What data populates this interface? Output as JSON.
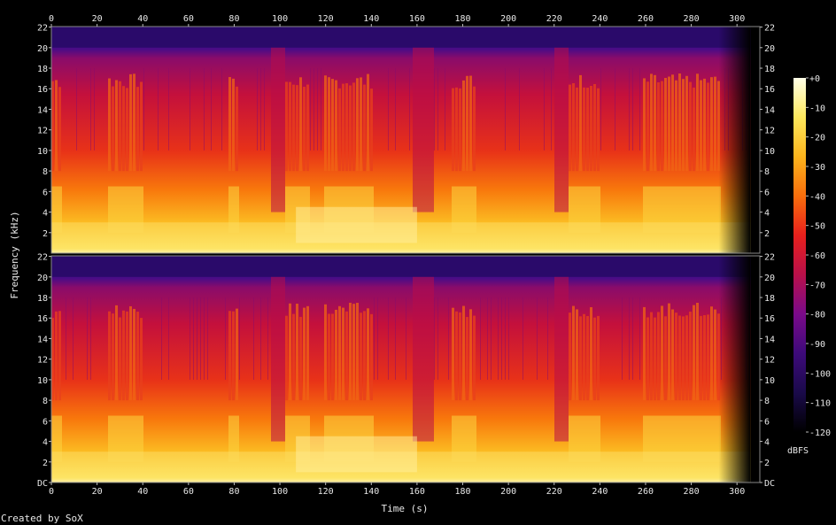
{
  "chart_data": {
    "type": "heatmap",
    "title": "",
    "xlabel": "Time (s)",
    "ylabel": "Frequency (kHz)",
    "x_ticks": [
      "0",
      "20",
      "40",
      "60",
      "80",
      "100",
      "120",
      "140",
      "160",
      "180",
      "200",
      "220",
      "240",
      "260",
      "280",
      "300"
    ],
    "xlim": [
      0,
      310
    ],
    "channels": [
      {
        "name": "",
        "y_ticks": [
          "2",
          "4",
          "6",
          "8",
          "10",
          "12",
          "14",
          "16",
          "18",
          "20",
          "22"
        ],
        "ylim": [
          0,
          22.05
        ]
      },
      {
        "name": "",
        "y_ticks": [
          "DC",
          "2",
          "4",
          "6",
          "8",
          "10",
          "12",
          "14",
          "16",
          "18",
          "20",
          "22"
        ],
        "ylim": [
          0,
          22.05
        ]
      }
    ],
    "colorbar": {
      "label": "dBFS",
      "ticks": [
        "+0",
        "-10",
        "-20",
        "-30",
        "-40",
        "-50",
        "-60",
        "-70",
        "-80",
        "-90",
        "-100",
        "-110",
        "-120"
      ],
      "range": [
        -120,
        0
      ],
      "colors": [
        "#000000",
        "#1a0a4a",
        "#3d0a7a",
        "#7a0a8a",
        "#b8104a",
        "#e8201c",
        "#f86e0c",
        "#fcb41c",
        "#fde85c",
        "#ffffe8"
      ]
    },
    "loud_sections_s": [
      [
        0,
        4
      ],
      [
        24,
        40
      ],
      [
        76,
        82
      ],
      [
        102,
        112
      ],
      [
        118,
        140
      ],
      [
        174,
        186
      ],
      [
        226,
        240
      ],
      [
        258,
        292
      ]
    ],
    "quiet_sections_s": [
      [
        96,
        102
      ],
      [
        158,
        166
      ],
      [
        220,
        226
      ]
    ],
    "fade_out_s": [
      292,
      306
    ],
    "grid": false,
    "legend_position": "right"
  },
  "footer": {
    "credit": "Created by SoX"
  }
}
